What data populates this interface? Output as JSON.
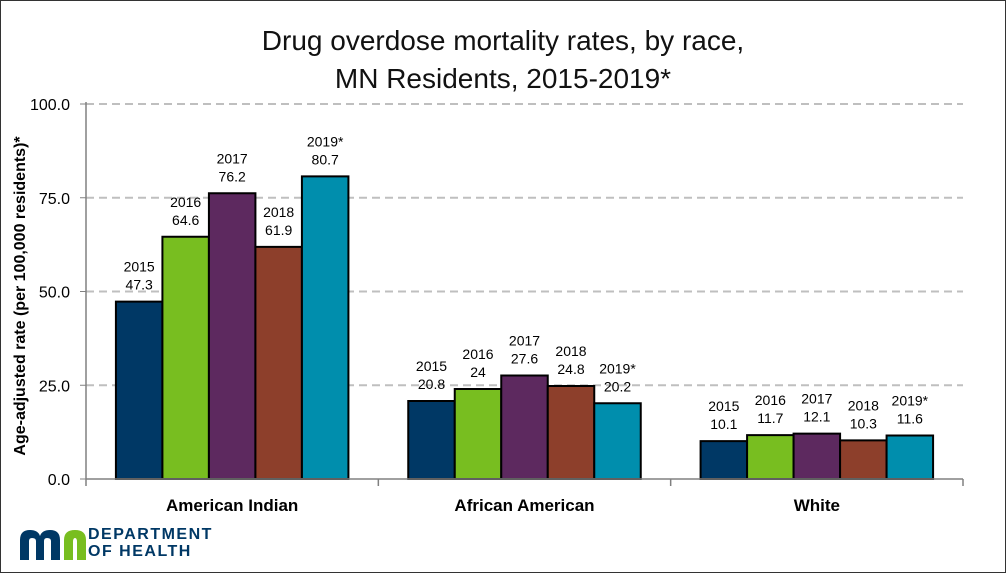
{
  "chart_data": {
    "type": "bar",
    "title": "Drug overdose mortality rates, by race,",
    "subtitle": "MN Residents, 2015-2019*",
    "xlabel": "",
    "ylabel": "Age-adjusted rate (per 100,000 residents)*",
    "ylim": [
      0,
      100
    ],
    "yticks": [
      "0.0",
      "25.0",
      "50.0",
      "75.0",
      "100.0"
    ],
    "ytick_values": [
      0,
      25,
      50,
      75,
      100
    ],
    "grid": "horizontal dashed",
    "legend": "none; series labeled above bars",
    "categories": [
      "American Indian",
      "African American",
      "White"
    ],
    "series": [
      {
        "name": "2015",
        "color": "#003865",
        "values": [
          47.3,
          20.8,
          10.1
        ],
        "labels": [
          "47.3",
          "20.8",
          "10.1"
        ]
      },
      {
        "name": "2016",
        "color": "#78be20",
        "values": [
          64.6,
          24,
          11.7
        ],
        "labels": [
          "64.6",
          "24",
          "11.7"
        ]
      },
      {
        "name": "2017",
        "color": "#5d295f",
        "values": [
          76.2,
          27.6,
          12.1
        ],
        "labels": [
          "76.2",
          "27.6",
          "12.1"
        ]
      },
      {
        "name": "2018",
        "color": "#8d3f2b",
        "values": [
          61.9,
          24.8,
          10.3
        ],
        "labels": [
          "61.9",
          "24.8",
          "10.3"
        ]
      },
      {
        "name": "2019*",
        "color": "#008ead",
        "values": [
          80.7,
          20.2,
          11.6
        ],
        "labels": [
          "80.7",
          "20.2",
          "11.6"
        ]
      }
    ]
  },
  "logo": {
    "line1": "DEPARTMENT",
    "line2": "OF HEALTH",
    "mark": "mn-logo-icon",
    "colors": {
      "m": "#003865",
      "n": "#78be20"
    }
  }
}
